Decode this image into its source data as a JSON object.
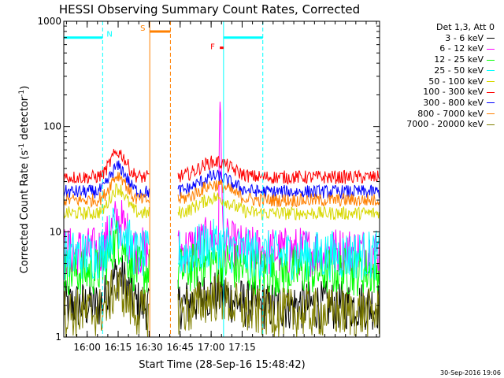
{
  "chart_data": {
    "type": "line",
    "title": "HESSI Observing Summary Count Rates, Corrected",
    "xlabel": "Start Time (28-Sep-16 15:48:42)",
    "ylabel_main": "Corrected Count Rate (s",
    "ylabel_sup1": "-1",
    "ylabel_mid": " detector",
    "ylabel_sup2": "-1",
    "ylabel_end": ")",
    "yscale": "log",
    "ylim": [
      1,
      1000
    ],
    "xlim_minutes": [
      948.7,
      1101.5
    ],
    "x_ticks": [
      {
        "t": 960,
        "label": "16:00"
      },
      {
        "t": 975,
        "label": "16:15"
      },
      {
        "t": 990,
        "label": "16:30"
      },
      {
        "t": 1005,
        "label": "16:45"
      },
      {
        "t": 1020,
        "label": "17:00"
      },
      {
        "t": 1035,
        "label": "17:15"
      }
    ],
    "y_ticks": [
      {
        "v": 1,
        "label": "1"
      },
      {
        "v": 10,
        "label": "10"
      },
      {
        "v": 100,
        "label": "100"
      },
      {
        "v": 1000,
        "label": "1000"
      }
    ],
    "legend_header": "Det 1,3, Att 0",
    "series": [
      {
        "name": "3 - 6 keV",
        "color": "#000000",
        "base": 2.0
      },
      {
        "name": "6 - 12 keV",
        "color": "#ff00ff",
        "base": 6.5
      },
      {
        "name": "12 - 25 keV",
        "color": "#00ff00",
        "base": 4.2
      },
      {
        "name": "25 - 50 keV",
        "color": "#00ffff",
        "base": 6.0
      },
      {
        "name": "50 - 100 keV",
        "color": "#d8d800",
        "base": 15
      },
      {
        "name": "100 - 300 keV",
        "color": "#ff0000",
        "base": 33
      },
      {
        "name": "300 - 800 keV",
        "color": "#0000ff",
        "base": 24
      },
      {
        "name": "800 - 7000 keV",
        "color": "#ff8000",
        "base": 20
      },
      {
        "name": "7000 - 20000 keV",
        "color": "#808000",
        "base": 1.7
      }
    ],
    "gaps": [
      [
        990.3,
        1004.0
      ]
    ],
    "annotations": [
      {
        "label": "N",
        "color": "#00ffff",
        "start": 948.7,
        "end": 967.5,
        "level": 700
      },
      {
        "label": "S",
        "color": "#ff8000",
        "start": 990.3,
        "end": 1000.3,
        "level": 800
      },
      {
        "label": "F",
        "color": "#ff0000",
        "start": 1024.2,
        "end": 1026.0,
        "level": 560
      },
      {
        "label": "",
        "color": "#00ffff",
        "start": 1026.0,
        "end": 1045.0,
        "level": 700
      }
    ],
    "vlines": [
      {
        "t": 948.7,
        "color": "#00ffff",
        "style": "solid"
      },
      {
        "t": 967.5,
        "color": "#00ffff",
        "style": "dashed"
      },
      {
        "t": 990.3,
        "color": "#ff8000",
        "style": "solid"
      },
      {
        "t": 1000.3,
        "color": "#ff8000",
        "style": "dashed"
      },
      {
        "t": 1026.0,
        "color": "#00ffff",
        "style": "solid"
      },
      {
        "t": 1045.0,
        "color": "#00ffff",
        "style": "dashed"
      }
    ]
  },
  "footer_stamp": "30-Sep-2016 19:06"
}
